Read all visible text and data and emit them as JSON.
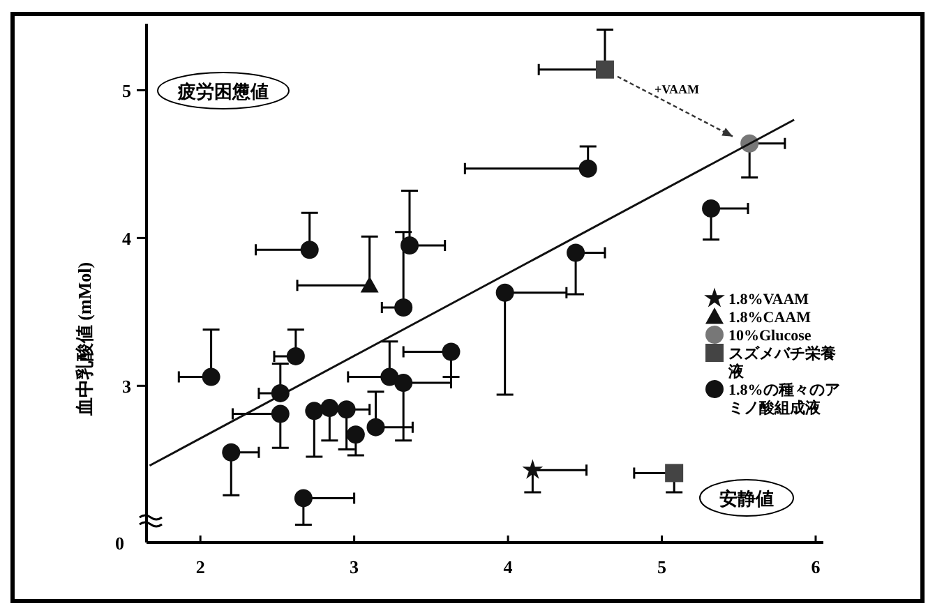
{
  "chart_data": {
    "type": "scatter",
    "ylabel": "血中乳酸値 (mMol)",
    "xlim": [
      1.65,
      6.05
    ],
    "xticks": [
      2,
      3,
      4,
      5,
      6
    ],
    "ylim": [
      1.94,
      5.45
    ],
    "yticks": [
      3,
      4,
      5
    ],
    "legend": "right",
    "annotations": [
      "疲労困憊値",
      "安静値",
      "+VAAM",
      "0"
    ],
    "series": [
      {
        "name": "1.8%VAAM",
        "color": "#111111",
        "marker": "star",
        "x": [
          4.16
        ],
        "values": [
          2.43
        ],
        "xerrors": [
          [
            4.16,
            4.51
          ]
        ],
        "errors": [
          [
            2.28,
            2.43
          ]
        ]
      },
      {
        "name": "1.8%CAAM",
        "color": "#111111",
        "marker": "triangle",
        "x": [
          3.1
        ],
        "values": [
          3.68
        ],
        "xerrors": [
          [
            2.63,
            3.1
          ]
        ],
        "errors": [
          [
            3.68,
            4.01
          ]
        ]
      },
      {
        "name": "10%Glucose",
        "color": "#777777",
        "marker": "circle",
        "x": [
          5.57
        ],
        "values": [
          4.64
        ],
        "xerrors": [
          [
            5.57,
            5.8
          ]
        ],
        "errors": [
          [
            4.41,
            4.64
          ]
        ]
      },
      {
        "name": "スズメバチ栄養液",
        "color": "#444444",
        "marker": "square",
        "x": [
          4.63,
          5.08
        ],
        "values": [
          5.14,
          2.41
        ],
        "xerrors": [
          [
            4.2,
            4.63
          ],
          [
            4.82,
            5.08
          ]
        ],
        "errors": [
          [
            5.14,
            5.41
          ],
          [
            2.28,
            2.41
          ]
        ]
      },
      {
        "name": "1.8%の種々のアミノ酸組成液",
        "color": "#111111",
        "marker": "circle",
        "x": [
          2.71,
          3.36,
          3.32,
          4.52,
          5.32,
          4.44,
          3.98,
          3.63,
          3.23,
          3.32,
          2.07,
          2.62,
          2.52,
          2.52,
          2.74,
          2.84,
          2.95,
          3.01,
          3.14,
          2.2,
          2.67
        ],
        "values": [
          3.92,
          3.95,
          3.53,
          4.47,
          4.2,
          3.9,
          3.63,
          3.23,
          3.06,
          3.02,
          3.06,
          3.2,
          2.95,
          2.81,
          2.83,
          2.85,
          2.84,
          2.67,
          2.72,
          2.55,
          2.24
        ],
        "xerrors": [
          [
            2.36,
            2.71
          ],
          [
            3.36,
            3.59
          ],
          [
            3.18,
            3.32
          ],
          [
            3.72,
            4.52
          ],
          [
            5.32,
            5.56
          ],
          [
            4.44,
            4.63
          ],
          [
            3.98,
            4.38
          ],
          [
            3.32,
            3.63
          ],
          [
            2.96,
            3.23
          ],
          [
            3.32,
            3.63
          ],
          [
            1.86,
            2.07
          ],
          [
            2.48,
            2.62
          ],
          [
            2.38,
            2.52
          ],
          [
            2.21,
            2.52
          ],
          null,
          null,
          [
            2.95,
            3.1
          ],
          null,
          [
            3.14,
            3.38
          ],
          [
            2.2,
            2.38
          ],
          [
            2.67,
            3.0
          ]
        ],
        "errors": [
          [
            3.92,
            4.17
          ],
          [
            3.95,
            4.32
          ],
          [
            3.53,
            4.04
          ],
          [
            4.47,
            4.62
          ],
          [
            3.99,
            4.2
          ],
          [
            3.62,
            3.9
          ],
          [
            2.94,
            3.63
          ],
          [
            3.06,
            3.23
          ],
          [
            3.06,
            3.3
          ],
          [
            2.63,
            3.02
          ],
          [
            3.06,
            3.38
          ],
          [
            3.2,
            3.38
          ],
          [
            2.95,
            3.15
          ],
          [
            2.58,
            2.81
          ],
          [
            2.52,
            2.83
          ],
          [
            2.63,
            2.85
          ],
          [
            2.57,
            2.84
          ],
          [
            2.53,
            2.67
          ],
          [
            2.72,
            2.96
          ],
          [
            2.26,
            2.55
          ],
          [
            2.06,
            2.24
          ]
        ]
      },
      {
        "type": "line",
        "color": "#111111",
        "x": [
          1.67,
          5.86
        ],
        "values": [
          2.46,
          4.8
        ]
      }
    ]
  }
}
